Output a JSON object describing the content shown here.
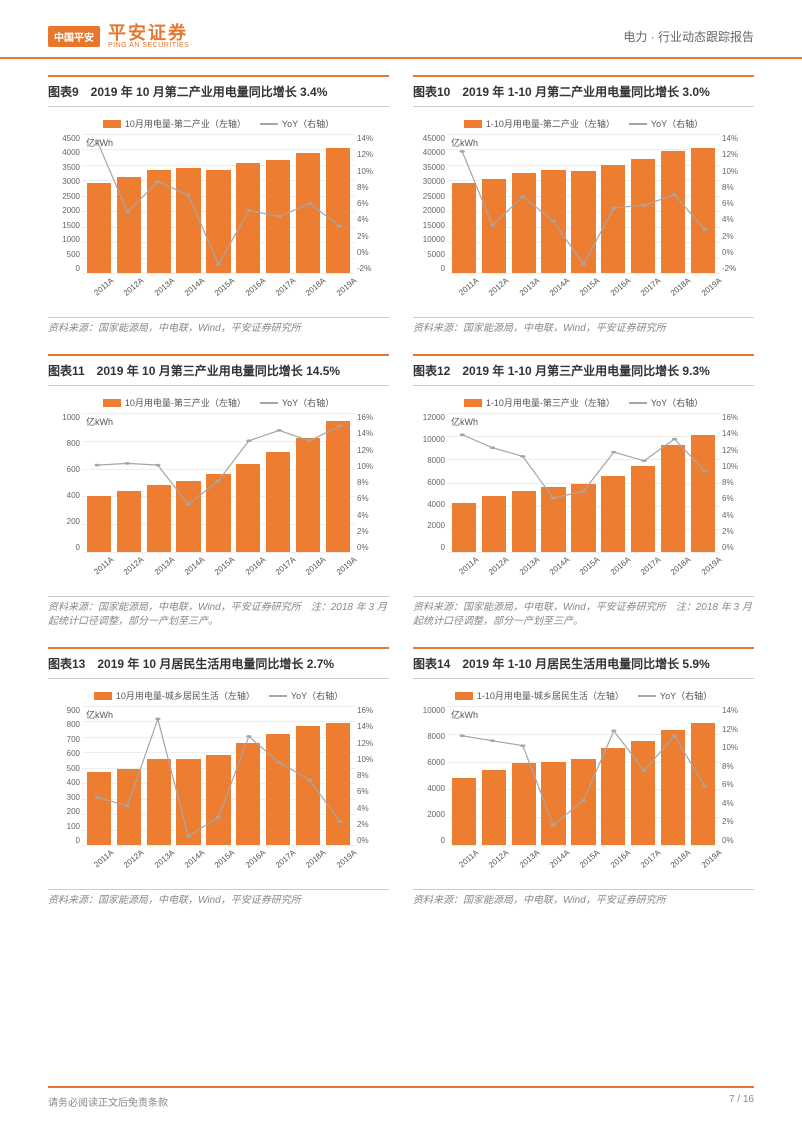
{
  "colors": {
    "accent": "#e8772e",
    "bar": "#ed7d31",
    "line": "#a6a6a6",
    "grid": "#eeeeee",
    "text": "#333333",
    "muted": "#888888"
  },
  "header": {
    "logo_badge": "中国平安",
    "logo_cn": "平安证券",
    "logo_en": "PING AN SECURITIES",
    "right_text": "电力 · 行业动态跟踪报告"
  },
  "footer": {
    "disclaimer": "请务必阅读正文后免责条款",
    "page": "7 / 16"
  },
  "categories": [
    "2011A",
    "2012A",
    "2013A",
    "2014A",
    "2015A",
    "2016A",
    "2017A",
    "2018A",
    "2019A"
  ],
  "charts": [
    {
      "id": "c9",
      "title": "图表9　2019 年 10 月第二产业用电量同比增长 3.4%",
      "legend_bar": "10月用电量-第二产业（左轴）",
      "legend_line": "YoY（右轴）",
      "unit": "亿kWh",
      "y_left": {
        "max": 4500,
        "step": 500,
        "ticks": [
          "4500",
          "4000",
          "3500",
          "3000",
          "2500",
          "2000",
          "1500",
          "1000",
          "500",
          "0"
        ]
      },
      "y_right": {
        "max": 14,
        "min": -2,
        "ticks": [
          "14%",
          "12%",
          "10%",
          "8%",
          "6%",
          "4%",
          "2%",
          "0%",
          "-2%"
        ]
      },
      "bars": [
        2900,
        3100,
        3350,
        3400,
        3350,
        3550,
        3650,
        3900,
        4050
      ],
      "line_pct": [
        13.2,
        5.0,
        8.5,
        7.0,
        -1.0,
        5.2,
        4.5,
        6.0,
        3.4
      ],
      "source": "资料来源：国家能源局，中电联，Wind，平安证券研究所"
    },
    {
      "id": "c10",
      "title": "图表10　2019 年 1-10 月第二产业用电量同比增长 3.0%",
      "legend_bar": "1-10月用电量-第二产业（左轴）",
      "legend_line": "YoY（右轴）",
      "unit": "亿kWh",
      "y_left": {
        "max": 45000,
        "step": 5000,
        "ticks": [
          "45000",
          "40000",
          "35000",
          "30000",
          "25000",
          "20000",
          "15000",
          "10000",
          "5000",
          "0"
        ]
      },
      "y_right": {
        "max": 14,
        "min": -2,
        "ticks": [
          "14%",
          "12%",
          "10%",
          "8%",
          "6%",
          "4%",
          "2%",
          "0%",
          "-2%"
        ]
      },
      "bars": [
        29000,
        30500,
        32500,
        33500,
        33000,
        35000,
        37000,
        39500,
        40500
      ],
      "line_pct": [
        12.0,
        3.5,
        6.8,
        4.0,
        -1.0,
        5.5,
        5.8,
        7.0,
        3.0
      ],
      "source": "资料来源：国家能源局，中电联，Wind，平安证券研究所"
    },
    {
      "id": "c11",
      "title": "图表11　2019 年 10 月第三产业用电量同比增长 14.5%",
      "legend_bar": "10月用电量-第三产业（左轴）",
      "legend_line": "YoY（右轴）",
      "unit": "亿kWh",
      "y_left": {
        "max": 1000,
        "step": 200,
        "ticks": [
          "1000",
          "800",
          "600",
          "400",
          "200",
          "0"
        ]
      },
      "y_right": {
        "max": 16,
        "min": 0,
        "ticks": [
          "16%",
          "14%",
          "12%",
          "10%",
          "8%",
          "6%",
          "4%",
          "2%",
          "0%"
        ]
      },
      "bars": [
        400,
        440,
        480,
        510,
        560,
        630,
        720,
        820,
        940
      ],
      "line_pct": [
        10.0,
        10.2,
        10.0,
        5.5,
        8.2,
        12.8,
        14.0,
        12.8,
        14.5
      ],
      "source": "资料来源：国家能源局，中电联，Wind，平安证券研究所　注：2018 年 3 月起统计口径调整，部分一产划至三产。"
    },
    {
      "id": "c12",
      "title": "图表12　2019 年 1-10 月第三产业用电量同比增长 9.3%",
      "legend_bar": "1-10月用电量-第三产业（左轴）",
      "legend_line": "YoY（右轴）",
      "unit": "亿kWh",
      "y_left": {
        "max": 12000,
        "step": 2000,
        "ticks": [
          "12000",
          "10000",
          "8000",
          "6000",
          "4000",
          "2000",
          "0"
        ]
      },
      "y_right": {
        "max": 16,
        "min": 0,
        "ticks": [
          "16%",
          "14%",
          "12%",
          "10%",
          "8%",
          "6%",
          "4%",
          "2%",
          "0%"
        ]
      },
      "bars": [
        4200,
        4800,
        5300,
        5600,
        5900,
        6600,
        7400,
        9200,
        10100
      ],
      "line_pct": [
        13.5,
        12.0,
        11.0,
        6.2,
        7.0,
        11.5,
        10.5,
        13.0,
        9.3
      ],
      "source": "资料来源：国家能源局，中电联，Wind，平安证券研究所　注：2018 年 3 月起统计口径调整，部分一产划至三产。"
    },
    {
      "id": "c13",
      "title": "图表13　2019 年 10 月居民生活用电量同比增长 2.7%",
      "legend_bar": "10月用电量-城乡居民生活（左轴）",
      "legend_line": "YoY（右轴）",
      "unit": "亿kWh",
      "y_left": {
        "max": 900,
        "step": 100,
        "ticks": [
          "900",
          "800",
          "700",
          "600",
          "500",
          "400",
          "300",
          "200",
          "100",
          "0"
        ]
      },
      "y_right": {
        "max": 16,
        "min": 0,
        "ticks": [
          "16%",
          "14%",
          "12%",
          "10%",
          "8%",
          "6%",
          "4%",
          "2%",
          "0%"
        ]
      },
      "bars": [
        470,
        490,
        560,
        560,
        580,
        660,
        720,
        770,
        790
      ],
      "line_pct": [
        5.5,
        4.5,
        14.5,
        1.0,
        3.2,
        12.5,
        9.5,
        7.5,
        2.7
      ],
      "source": "资料来源：国家能源局，中电联，Wind，平安证券研究所"
    },
    {
      "id": "c14",
      "title": "图表14　2019 年 1-10 月居民生活用电量同比增长 5.9%",
      "legend_bar": "1-10月用电量-城乡居民生活（左轴）",
      "legend_line": "YoY（右轴）",
      "unit": "亿kWh",
      "y_left": {
        "max": 10000,
        "step": 2000,
        "ticks": [
          "10000",
          "8000",
          "6000",
          "4000",
          "2000",
          "0"
        ]
      },
      "y_right": {
        "max": 14,
        "min": 0,
        "ticks": [
          "14%",
          "12%",
          "10%",
          "8%",
          "6%",
          "4%",
          "2%",
          "0%"
        ]
      },
      "bars": [
        4800,
        5400,
        5900,
        6000,
        6200,
        7000,
        7500,
        8300,
        8800
      ],
      "line_pct": [
        11.0,
        10.5,
        10.0,
        2.0,
        4.5,
        11.5,
        7.5,
        11.0,
        5.9
      ],
      "source": "资料来源：国家能源局，中电联，Wind，平安证券研究所"
    }
  ]
}
